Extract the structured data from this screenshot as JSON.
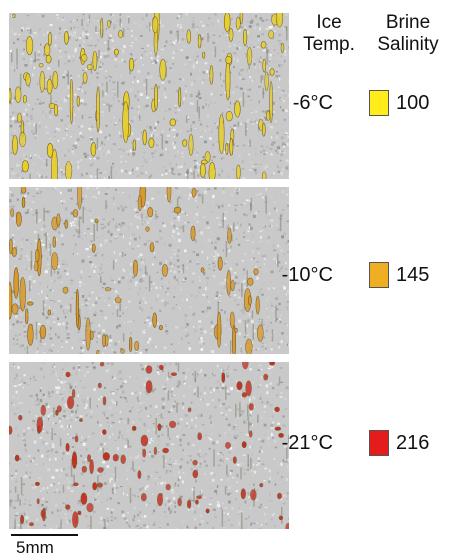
{
  "header": {
    "ice_temp": "Ice\nTemp.",
    "brine_salinity": "Brine\nSalinity"
  },
  "rows": [
    {
      "temp": "-6°C",
      "salinity": "100",
      "color": "#ffec1a",
      "inclusion_color": "#e8cf2a"
    },
    {
      "temp": "-10°C",
      "salinity": "145",
      "color": "#f0ae22",
      "inclusion_color": "#d99a2a"
    },
    {
      "temp": "-21°C",
      "salinity": "216",
      "color": "#e51c1c",
      "inclusion_color": "#cc2a22"
    }
  ],
  "scale_bar": {
    "label": "5mm"
  },
  "panel_background": "#c9c9c9"
}
